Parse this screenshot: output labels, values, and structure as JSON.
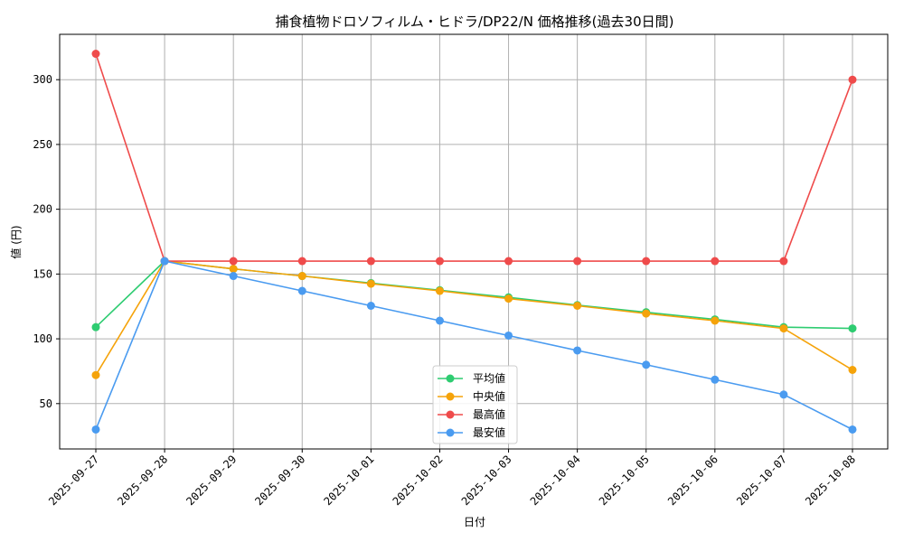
{
  "chart_data": {
    "type": "line",
    "title": "捕食植物ドロソフィルム・ヒドラ/DP22/N 価格推移(過去30日間)",
    "xlabel": "日付",
    "ylabel": "値 (円)",
    "categories": [
      "2025-09-27",
      "2025-09-28",
      "2025-09-29",
      "2025-09-30",
      "2025-10-01",
      "2025-10-02",
      "2025-10-03",
      "2025-10-04",
      "2025-10-05",
      "2025-10-06",
      "2025-10-07",
      "2025-10-08"
    ],
    "ylim": [
      15,
      335
    ],
    "yticks": [
      50,
      100,
      150,
      200,
      250,
      300
    ],
    "grid": true,
    "legend_position": "bottom-center",
    "series": [
      {
        "name": "平均値",
        "color": "#2ecc71",
        "values": [
          109,
          160,
          154,
          148.5,
          143,
          137.5,
          132,
          126,
          120.5,
          115,
          109,
          108
        ]
      },
      {
        "name": "中央値",
        "color": "#f5a30a",
        "values": [
          72,
          160,
          154,
          148.5,
          142.5,
          137,
          131,
          125.5,
          119.5,
          114,
          108,
          76
        ]
      },
      {
        "name": "最高値",
        "color": "#ef4b4b",
        "values": [
          320,
          160,
          160,
          160,
          160,
          160,
          160,
          160,
          160,
          160,
          160,
          300
        ]
      },
      {
        "name": "最安値",
        "color": "#4a9bf0",
        "values": [
          30,
          160,
          148.5,
          137,
          125.5,
          114,
          102.5,
          91,
          80,
          68.5,
          57,
          30
        ]
      }
    ]
  }
}
